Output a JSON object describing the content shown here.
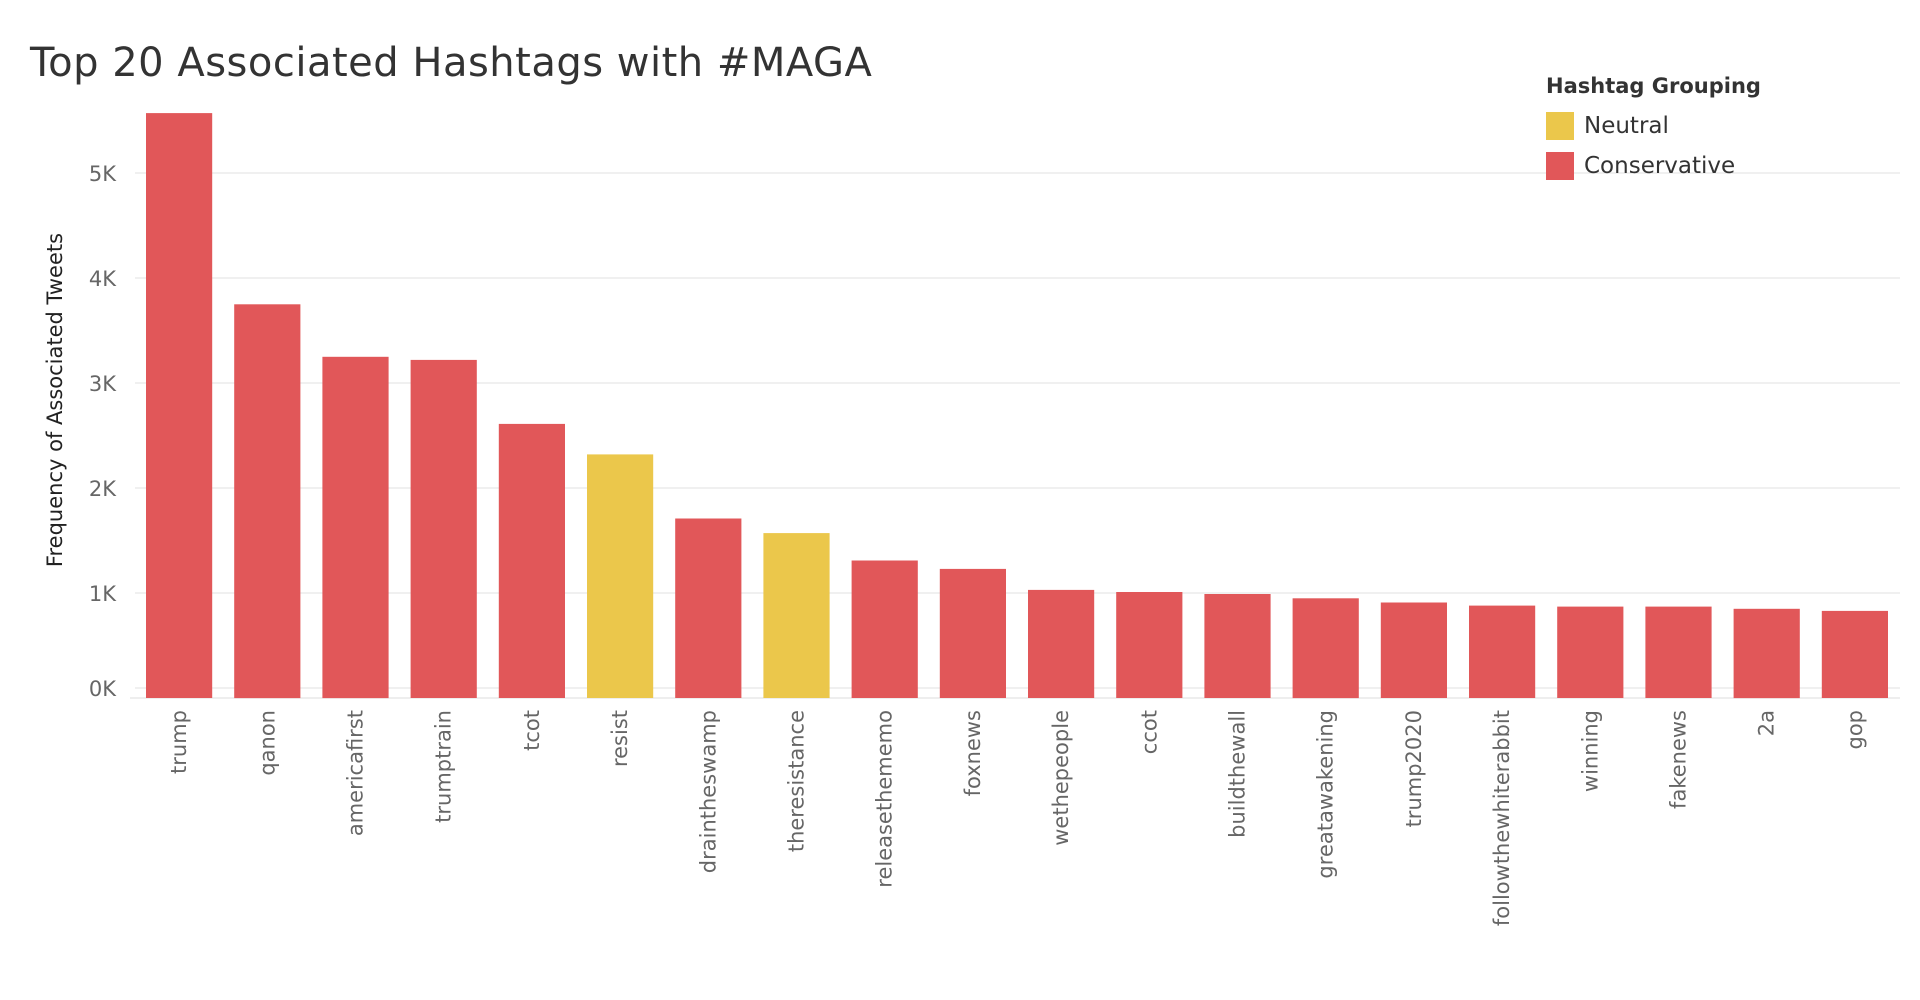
{
  "chart_data": {
    "type": "bar",
    "title": "Top 20 Associated Hashtags with #MAGA",
    "xlabel": "",
    "ylabel": "Frequency of Associated Tweets",
    "ylim": [
      0,
      5600
    ],
    "yticks": [
      0,
      1000,
      2000,
      3000,
      4000,
      5000
    ],
    "ytick_labels": [
      "0K",
      "1K",
      "2K",
      "3K",
      "4K",
      "5K"
    ],
    "grid": true,
    "legend_title": "Hashtag Grouping",
    "legend_position": "top-right",
    "groups": [
      {
        "name": "Neutral",
        "color": "#EBC74B"
      },
      {
        "name": "Conservative",
        "color": "#E15759"
      }
    ],
    "categories": [
      "trump",
      "qanon",
      "americafirst",
      "trumptrain",
      "tcot",
      "resist",
      "draintheswamp",
      "theresistance",
      "releasethememo",
      "foxnews",
      "wethepeople",
      "ccot",
      "buildthewall",
      "greatawakening",
      "trump2020",
      "followthewhiterabbit",
      "winning",
      "fakenews",
      "2a",
      "gop"
    ],
    "values": [
      5570,
      3750,
      3250,
      3220,
      2610,
      2320,
      1710,
      1570,
      1310,
      1230,
      1030,
      1010,
      990,
      950,
      910,
      880,
      870,
      870,
      850,
      830
    ],
    "bar_groups": [
      "Conservative",
      "Conservative",
      "Conservative",
      "Conservative",
      "Conservative",
      "Neutral",
      "Conservative",
      "Neutral",
      "Conservative",
      "Conservative",
      "Conservative",
      "Conservative",
      "Conservative",
      "Conservative",
      "Conservative",
      "Conservative",
      "Conservative",
      "Conservative",
      "Conservative",
      "Conservative"
    ]
  }
}
